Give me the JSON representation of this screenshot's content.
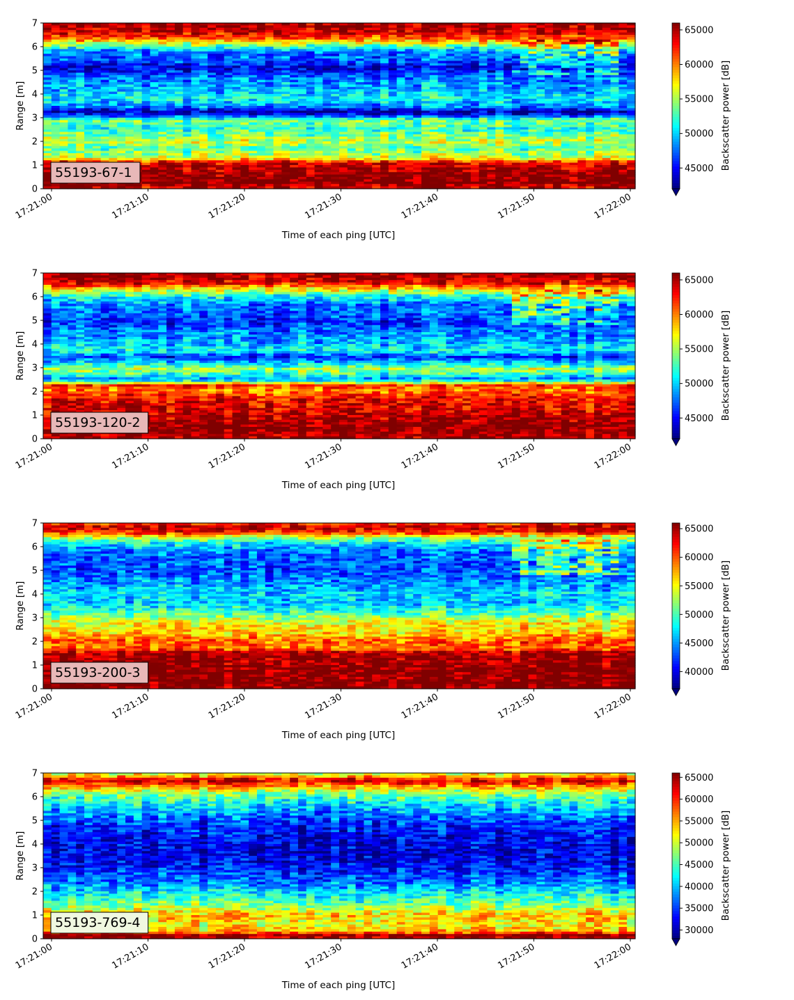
{
  "colormap": "jet",
  "colors": {
    "panel_label_bg": "#e8b8b8",
    "panel_label_bg_light": "#f0f8e0",
    "frame": "#000000"
  },
  "x_ticks": [
    "17:21:00",
    "17:21:10",
    "17:21:20",
    "17:21:30",
    "17:21:40",
    "17:21:50",
    "17:22:00"
  ],
  "y_ticks": [
    "0",
    "1",
    "2",
    "3",
    "4",
    "5",
    "6",
    "7"
  ],
  "chart_data": [
    {
      "type": "heatmap",
      "label": "55193-67-1",
      "xlabel": "Time of each ping [UTC]",
      "ylabel": "Range [m]",
      "colorbar_label": "Backscatter power [dB]",
      "xlim": [
        "17:21:00",
        "17:22:00"
      ],
      "ylim": [
        0,
        7
      ],
      "clim": [
        42000,
        66000
      ],
      "colorbar_ticks": [
        "45000",
        "50000",
        "55000",
        "60000",
        "65000"
      ],
      "colorbar_tick_values": [
        45000,
        50000,
        55000,
        60000,
        65000
      ],
      "colorbar_extend": "min",
      "range_profile": [
        [
          0.0,
          64000
        ],
        [
          0.25,
          66000
        ],
        [
          0.6,
          66000
        ],
        [
          1.1,
          64000
        ],
        [
          1.3,
          56000
        ],
        [
          1.7,
          53000
        ],
        [
          2.0,
          56000
        ],
        [
          2.5,
          52000
        ],
        [
          2.9,
          54000
        ],
        [
          3.1,
          46000
        ],
        [
          3.25,
          43000
        ],
        [
          3.45,
          48000
        ],
        [
          3.8,
          51000
        ],
        [
          4.3,
          49000
        ],
        [
          4.7,
          48000
        ],
        [
          5.1,
          44000
        ],
        [
          5.4,
          47000
        ],
        [
          5.8,
          48000
        ],
        [
          6.05,
          54000
        ],
        [
          6.35,
          61000
        ],
        [
          6.6,
          64000
        ],
        [
          6.8,
          65000
        ],
        [
          7.0,
          65000
        ]
      ]
    },
    {
      "type": "heatmap",
      "label": "55193-120-2",
      "xlabel": "Time of each ping [UTC]",
      "ylabel": "Range [m]",
      "colorbar_label": "Backscatter power [dB]",
      "xlim": [
        "17:21:00",
        "17:22:00"
      ],
      "ylim": [
        0,
        7
      ],
      "clim": [
        42000,
        66000
      ],
      "colorbar_ticks": [
        "45000",
        "50000",
        "55000",
        "60000",
        "65000"
      ],
      "colorbar_tick_values": [
        45000,
        50000,
        55000,
        60000,
        65000
      ],
      "colorbar_extend": "min",
      "range_profile": [
        [
          0.0,
          65000
        ],
        [
          0.5,
          66000
        ],
        [
          1.2,
          64000
        ],
        [
          1.7,
          63000
        ],
        [
          2.05,
          60000
        ],
        [
          2.25,
          62000
        ],
        [
          2.5,
          48000
        ],
        [
          2.7,
          52000
        ],
        [
          2.95,
          55000
        ],
        [
          3.2,
          50000
        ],
        [
          3.45,
          46000
        ],
        [
          3.7,
          51000
        ],
        [
          4.1,
          49000
        ],
        [
          4.5,
          48000
        ],
        [
          4.9,
          46000
        ],
        [
          5.3,
          47000
        ],
        [
          5.7,
          48000
        ],
        [
          6.05,
          52000
        ],
        [
          6.3,
          57000
        ],
        [
          6.55,
          63000
        ],
        [
          6.8,
          65000
        ],
        [
          7.0,
          65000
        ]
      ]
    },
    {
      "type": "heatmap",
      "label": "55193-200-3",
      "xlabel": "Time of each ping [UTC]",
      "ylabel": "Range [m]",
      "colorbar_label": "Backscatter power [dB]",
      "xlim": [
        "17:21:00",
        "17:22:00"
      ],
      "ylim": [
        0,
        7
      ],
      "clim": [
        37000,
        66000
      ],
      "colorbar_ticks": [
        "40000",
        "45000",
        "50000",
        "55000",
        "60000",
        "65000"
      ],
      "colorbar_tick_values": [
        40000,
        45000,
        50000,
        55000,
        60000,
        65000
      ],
      "colorbar_extend": "min",
      "range_profile": [
        [
          0.0,
          66000
        ],
        [
          0.8,
          66000
        ],
        [
          1.5,
          65000
        ],
        [
          1.7,
          59000
        ],
        [
          2.0,
          60000
        ],
        [
          2.4,
          56000
        ],
        [
          2.8,
          55000
        ],
        [
          3.2,
          50000
        ],
        [
          3.6,
          46000
        ],
        [
          4.0,
          47000
        ],
        [
          4.4,
          45000
        ],
        [
          4.9,
          43000
        ],
        [
          5.4,
          43000
        ],
        [
          5.8,
          44000
        ],
        [
          6.1,
          47000
        ],
        [
          6.4,
          53000
        ],
        [
          6.6,
          62000
        ],
        [
          6.85,
          64000
        ],
        [
          7.0,
          60000
        ]
      ]
    },
    {
      "type": "heatmap",
      "label": "55193-769-4",
      "xlabel": "Time of each ping [UTC]",
      "ylabel": "Range [m]",
      "colorbar_label": "Backscatter power [dB]",
      "xlim": [
        "17:21:00",
        "17:22:00"
      ],
      "ylim": [
        0,
        7
      ],
      "clim": [
        28000,
        66000
      ],
      "colorbar_ticks": [
        "30000",
        "35000",
        "40000",
        "45000",
        "50000",
        "55000",
        "60000",
        "65000"
      ],
      "colorbar_tick_values": [
        30000,
        35000,
        40000,
        45000,
        50000,
        55000,
        60000,
        65000
      ],
      "colorbar_extend": "min",
      "range_profile": [
        [
          0.0,
          64000
        ],
        [
          0.15,
          66000
        ],
        [
          0.3,
          54000
        ],
        [
          0.6,
          51000
        ],
        [
          1.0,
          54000
        ],
        [
          1.4,
          47000
        ],
        [
          1.9,
          42000
        ],
        [
          2.4,
          37000
        ],
        [
          3.0,
          33000
        ],
        [
          3.6,
          31000
        ],
        [
          4.2,
          32000
        ],
        [
          4.8,
          34000
        ],
        [
          5.3,
          38000
        ],
        [
          5.8,
          43000
        ],
        [
          6.2,
          48000
        ],
        [
          6.5,
          58000
        ],
        [
          6.7,
          63000
        ],
        [
          6.9,
          52000
        ],
        [
          7.0,
          50000
        ]
      ]
    }
  ]
}
